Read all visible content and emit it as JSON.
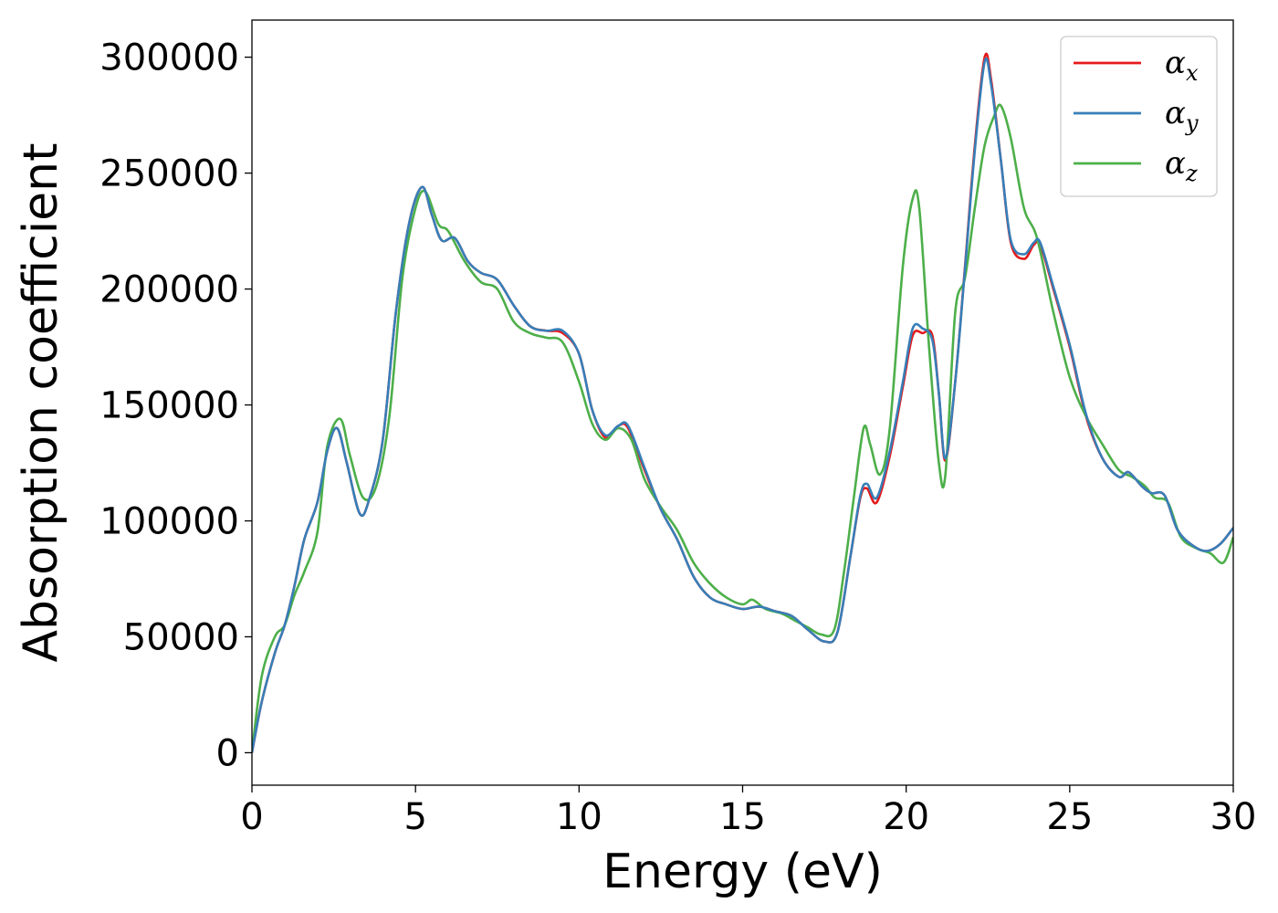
{
  "chart_data": {
    "type": "line",
    "xlabel": "Energy (eV)",
    "ylabel": "Absorption coefficient",
    "xlim": [
      0,
      30
    ],
    "ylim": [
      -14000,
      316000
    ],
    "xticks": [
      0,
      5,
      10,
      15,
      20,
      25,
      30
    ],
    "yticks": [
      0,
      50000,
      100000,
      150000,
      200000,
      250000,
      300000
    ],
    "grid": false,
    "legend_position": "top-right",
    "series": [
      {
        "name": "α",
        "subscript": "x",
        "color": "#e41a1c",
        "x": [
          0,
          0.3,
          0.7,
          1.0,
          1.3,
          1.6,
          2.0,
          2.3,
          2.6,
          2.9,
          3.3,
          3.6,
          4.0,
          4.4,
          4.8,
          5.2,
          5.5,
          5.8,
          6.2,
          6.6,
          7.0,
          7.5,
          8.0,
          8.5,
          9.0,
          9.5,
          10.0,
          10.4,
          10.8,
          11.2,
          11.5,
          12.0,
          12.5,
          13.0,
          13.5,
          14.0,
          14.5,
          15.0,
          15.5,
          16.0,
          16.5,
          17.0,
          17.5,
          17.9,
          18.3,
          18.6,
          18.8,
          19.1,
          19.5,
          19.9,
          20.2,
          20.5,
          20.8,
          21.0,
          21.2,
          21.5,
          21.8,
          22.1,
          22.4,
          22.6,
          22.9,
          23.2,
          23.6,
          23.9,
          24.1,
          24.5,
          25.0,
          25.5,
          26.0,
          26.5,
          26.8,
          27.2,
          27.5,
          27.9,
          28.3,
          28.8,
          29.2,
          29.6,
          30.0
        ],
        "values": [
          0,
          22000,
          43000,
          55000,
          72000,
          92000,
          108000,
          130000,
          140000,
          125000,
          103000,
          110000,
          135000,
          190000,
          228000,
          244000,
          232000,
          221000,
          222000,
          212000,
          207000,
          204000,
          193000,
          184000,
          182000,
          181000,
          172000,
          148000,
          136000,
          141000,
          140000,
          122000,
          105000,
          92000,
          76000,
          67000,
          64000,
          62000,
          63000,
          61000,
          59000,
          53000,
          48000,
          52000,
          85000,
          110000,
          114000,
          108000,
          128000,
          158000,
          180000,
          181000,
          180000,
          155000,
          126000,
          160000,
          210000,
          262000,
          300000,
          290000,
          255000,
          220000,
          213000,
          219000,
          219000,
          200000,
          175000,
          145000,
          127000,
          119000,
          121000,
          115000,
          112000,
          111000,
          96000,
          89000,
          87000,
          90000,
          97000
        ]
      },
      {
        "name": "α",
        "subscript": "y",
        "color": "#377eb8",
        "x": [
          0,
          0.3,
          0.7,
          1.0,
          1.3,
          1.6,
          2.0,
          2.3,
          2.6,
          2.9,
          3.3,
          3.6,
          4.0,
          4.4,
          4.8,
          5.2,
          5.5,
          5.8,
          6.2,
          6.6,
          7.0,
          7.5,
          8.0,
          8.5,
          9.0,
          9.5,
          10.0,
          10.4,
          10.8,
          11.2,
          11.5,
          12.0,
          12.5,
          13.0,
          13.5,
          14.0,
          14.5,
          15.0,
          15.5,
          16.0,
          16.5,
          17.0,
          17.5,
          17.9,
          18.3,
          18.6,
          18.8,
          19.1,
          19.5,
          19.9,
          20.2,
          20.5,
          20.8,
          21.0,
          21.2,
          21.5,
          21.8,
          22.1,
          22.4,
          22.6,
          22.9,
          23.2,
          23.6,
          23.9,
          24.1,
          24.5,
          25.0,
          25.5,
          26.0,
          26.5,
          26.8,
          27.2,
          27.5,
          27.9,
          28.3,
          28.8,
          29.2,
          29.6,
          30.0
        ],
        "values": [
          0,
          22000,
          43000,
          55000,
          72000,
          92000,
          108000,
          130000,
          140000,
          125000,
          103000,
          110000,
          135000,
          190000,
          228000,
          244000,
          232000,
          221000,
          222000,
          212000,
          207000,
          204000,
          193000,
          184000,
          182000,
          182000,
          172000,
          148000,
          137000,
          141000,
          141000,
          123000,
          105000,
          92000,
          76000,
          67000,
          64000,
          62000,
          63000,
          61000,
          59000,
          53000,
          48000,
          52000,
          85000,
          111000,
          116000,
          110000,
          130000,
          160000,
          183000,
          183000,
          178000,
          155000,
          127000,
          160000,
          209000,
          260000,
          298000,
          288000,
          255000,
          221000,
          215000,
          220000,
          220000,
          201000,
          176000,
          146000,
          127000,
          119000,
          121000,
          115000,
          112000,
          111000,
          96000,
          89000,
          87000,
          90000,
          97000
        ]
      },
      {
        "name": "α",
        "subscript": "z",
        "color": "#4daf4a",
        "x": [
          0,
          0.3,
          0.7,
          1.0,
          1.3,
          1.6,
          2.0,
          2.3,
          2.7,
          3.0,
          3.4,
          3.8,
          4.2,
          4.6,
          5.0,
          5.3,
          5.7,
          6.0,
          6.5,
          7.0,
          7.5,
          8.0,
          8.5,
          9.0,
          9.5,
          10.0,
          10.4,
          10.8,
          11.2,
          11.6,
          12.0,
          12.5,
          13.0,
          13.5,
          14.0,
          14.5,
          15.0,
          15.3,
          15.7,
          16.2,
          16.6,
          17.0,
          17.4,
          17.8,
          18.1,
          18.4,
          18.7,
          18.9,
          19.2,
          19.5,
          19.9,
          20.2,
          20.4,
          20.7,
          21.0,
          21.2,
          21.5,
          21.8,
          22.1,
          22.4,
          22.7,
          22.9,
          23.2,
          23.6,
          24.0,
          24.5,
          25.0,
          25.5,
          26.0,
          26.5,
          26.9,
          27.3,
          27.6,
          28.0,
          28.4,
          28.9,
          29.3,
          29.7,
          30.0
        ],
        "values": [
          0,
          33000,
          50000,
          55000,
          68000,
          78000,
          95000,
          132000,
          144000,
          128000,
          110000,
          115000,
          145000,
          205000,
          235000,
          242000,
          228000,
          225000,
          212000,
          203000,
          200000,
          186000,
          181000,
          179000,
          177000,
          160000,
          142000,
          135000,
          140000,
          135000,
          118000,
          106000,
          96000,
          82000,
          73000,
          67000,
          64000,
          66000,
          62000,
          60000,
          57000,
          54000,
          51000,
          53000,
          78000,
          110000,
          140000,
          133000,
          120000,
          140000,
          210000,
          239000,
          235000,
          175000,
          125000,
          120000,
          190000,
          205000,
          235000,
          262000,
          275000,
          279000,
          265000,
          235000,
          222000,
          190000,
          162000,
          145000,
          133000,
          122000,
          119000,
          115000,
          110000,
          108000,
          93000,
          88000,
          86000,
          82000,
          93000
        ]
      }
    ]
  }
}
